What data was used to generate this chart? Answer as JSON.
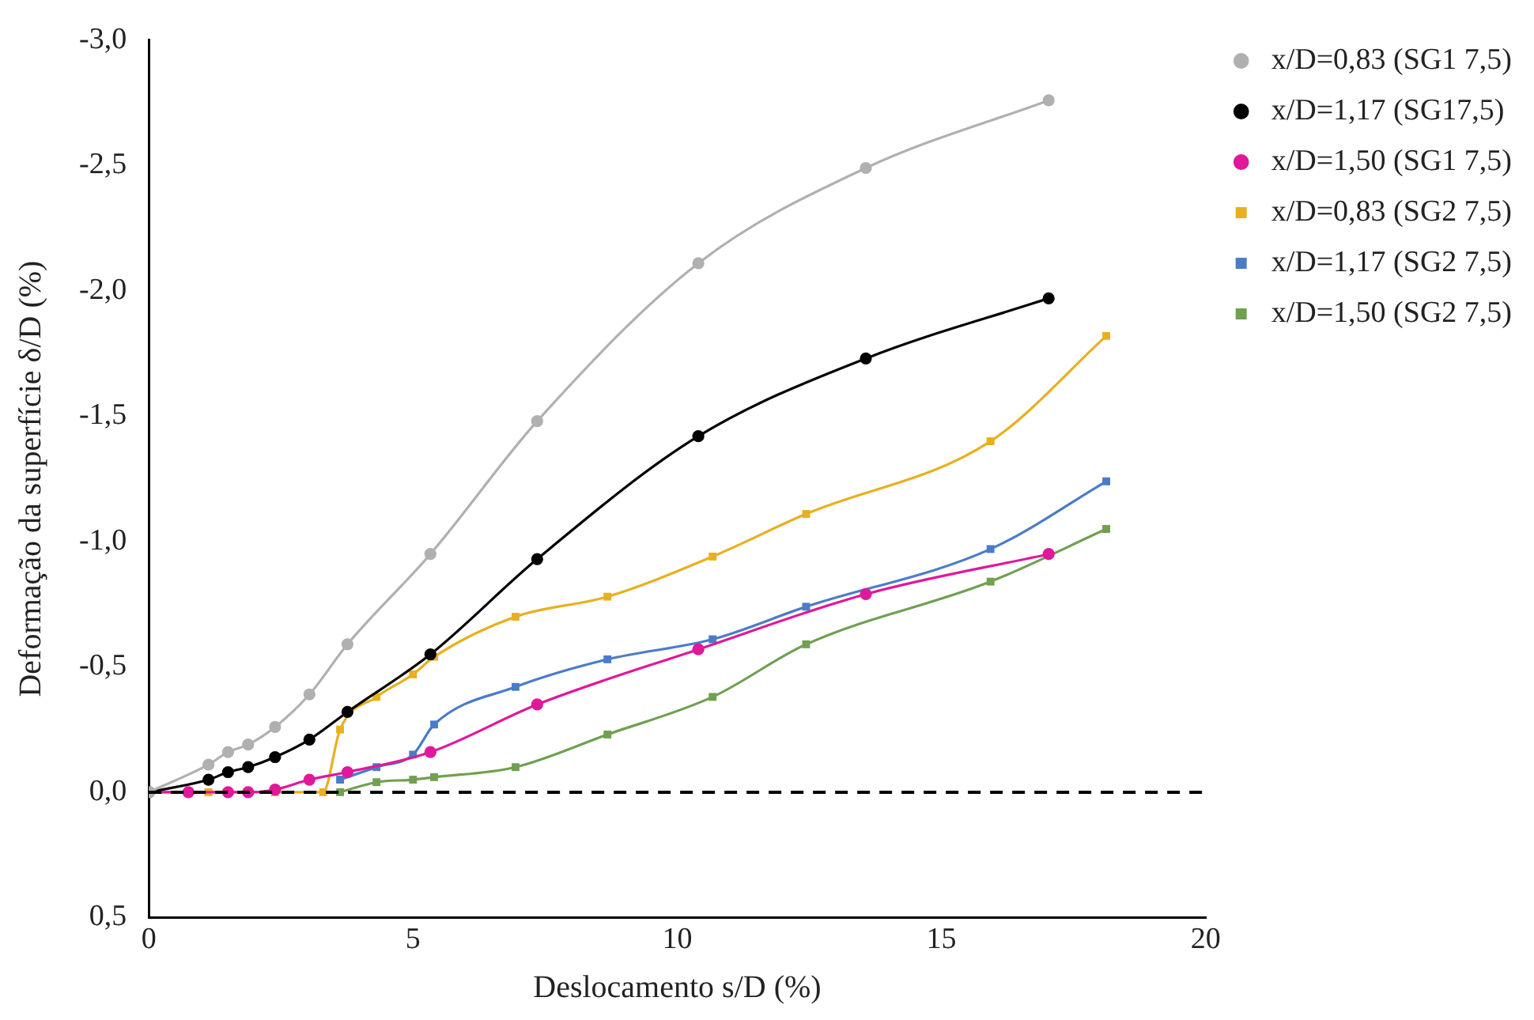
{
  "chart_data": {
    "type": "line",
    "xlabel": "Deslocamento s/D (%)",
    "ylabel": "Deformação da superfície δ/D (%)",
    "xlim": [
      0,
      20
    ],
    "xticks": [
      0,
      5,
      10,
      15,
      20
    ],
    "ylim": [
      0.5,
      -3.0
    ],
    "yticks": [
      {
        "value": -3.0,
        "label": "-3,0"
      },
      {
        "value": -2.5,
        "label": "-2,5"
      },
      {
        "value": -2.0,
        "label": "-2,0"
      },
      {
        "value": -1.5,
        "label": "-1,5"
      },
      {
        "value": -1.0,
        "label": "-1,0"
      },
      {
        "value": -0.5,
        "label": "-0,5"
      },
      {
        "value": 0,
        "label": "0,0"
      },
      {
        "value": 0.5,
        "label": "0,5"
      }
    ],
    "grid": false,
    "legend": "right",
    "ref_lines": [
      {
        "axis": "y",
        "value": 0,
        "color": "#000000",
        "line_style": "dashed"
      }
    ],
    "series": [
      {
        "name": "x/D=0,83 (SG1 7,5)",
        "color": "#b0b0b0",
        "marker": "circle",
        "x": [
          0,
          1.13,
          1.5,
          1.88,
          2.39,
          3.04,
          3.76,
          5.33,
          7.35,
          10.4,
          13.57,
          17.03
        ],
        "values": [
          0,
          -0.11,
          -0.16,
          -0.19,
          -0.26,
          -0.39,
          -0.59,
          -0.95,
          -1.48,
          -2.11,
          -2.49,
          -2.76
        ]
      },
      {
        "name": "x/D=1,17 (SG17,5)",
        "color": "#000000",
        "marker": "circle",
        "x": [
          0,
          1.13,
          1.5,
          1.88,
          2.39,
          3.04,
          3.76,
          5.33,
          7.35,
          10.4,
          13.57,
          17.03
        ],
        "values": [
          0,
          -0.05,
          -0.08,
          -0.1,
          -0.14,
          -0.21,
          -0.32,
          -0.55,
          -0.93,
          -1.42,
          -1.73,
          -1.97
        ]
      },
      {
        "name": "x/D=1,50 (SG1 7,5)",
        "color": "#e0189a",
        "marker": "circle",
        "x": [
          0,
          0.75,
          1.5,
          1.88,
          2.39,
          3.04,
          3.76,
          5.33,
          7.35,
          10.4,
          13.57,
          17.03
        ],
        "values": [
          0,
          0,
          0,
          0,
          -0.01,
          -0.05,
          -0.08,
          -0.16,
          -0.35,
          -0.57,
          -0.79,
          -0.95
        ]
      },
      {
        "name": "x/D=0,83 (SG2 7,5)",
        "color": "#e8b020",
        "marker": "square",
        "x": [
          0,
          1.13,
          2.39,
          3.3,
          3.62,
          4.31,
          5.0,
          5.4,
          6.94,
          8.68,
          10.67,
          12.44,
          15.93,
          18.12
        ],
        "values": [
          0,
          0,
          0,
          0,
          -0.25,
          -0.38,
          -0.47,
          -0.54,
          -0.7,
          -0.78,
          -0.94,
          -1.11,
          -1.4,
          -1.82
        ]
      },
      {
        "name": "x/D=1,17 (SG2 7,5)",
        "color": "#4a7cc8",
        "marker": "square",
        "x": [
          3.62,
          4.31,
          5.0,
          5.4,
          6.94,
          8.68,
          10.67,
          12.44,
          15.93,
          18.12
        ],
        "values": [
          -0.05,
          -0.1,
          -0.15,
          -0.27,
          -0.42,
          -0.53,
          -0.61,
          -0.74,
          -0.97,
          -1.24
        ]
      },
      {
        "name": "x/D=1,50 (SG2 7,5)",
        "color": "#70a050",
        "marker": "square",
        "x": [
          3.62,
          4.31,
          5.0,
          5.4,
          6.94,
          8.68,
          10.67,
          12.44,
          15.93,
          18.12
        ],
        "values": [
          0,
          -0.04,
          -0.05,
          -0.06,
          -0.1,
          -0.23,
          -0.38,
          -0.59,
          -0.84,
          -1.05
        ]
      }
    ]
  }
}
